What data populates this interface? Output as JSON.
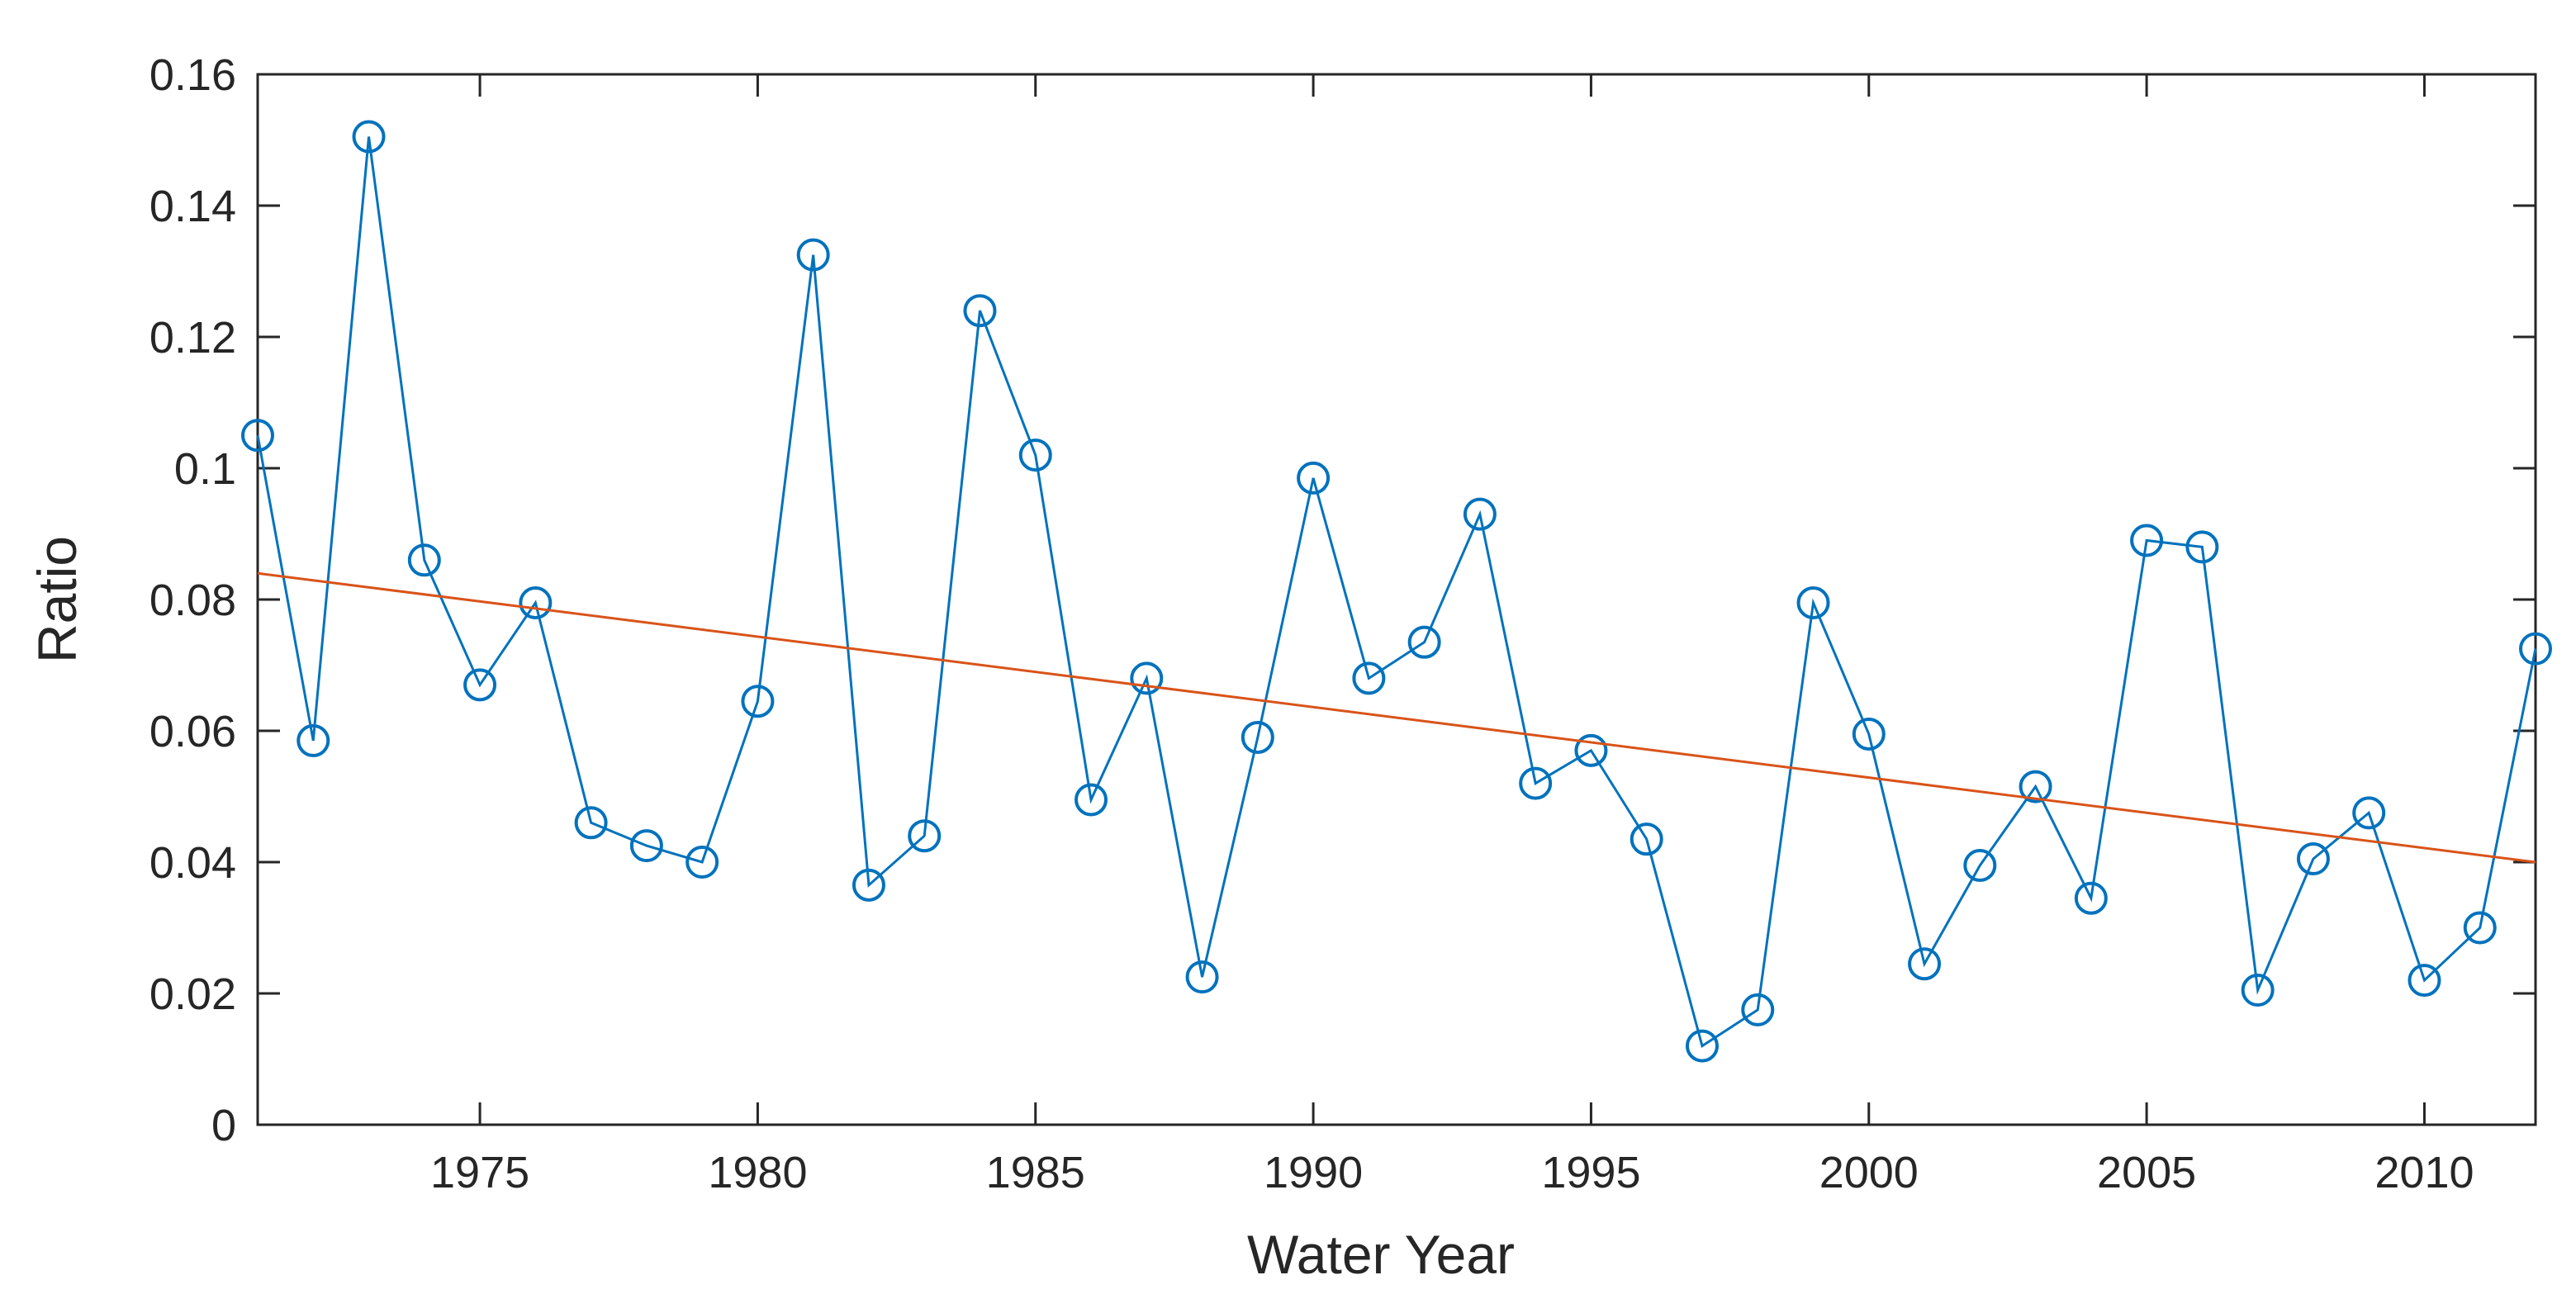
{
  "chart_data": {
    "type": "line",
    "title": "",
    "xlabel": "Water Year",
    "ylabel": "Ratio",
    "xlim": [
      1971,
      2012
    ],
    "ylim": [
      0,
      0.16
    ],
    "x_ticks": [
      1975,
      1980,
      1985,
      1990,
      1995,
      2000,
      2005,
      2010
    ],
    "x_tick_labels": [
      "1975",
      "1980",
      "1985",
      "1990",
      "1995",
      "2000",
      "2005",
      "2010"
    ],
    "y_ticks": [
      0,
      0.02,
      0.04,
      0.06,
      0.08,
      0.1,
      0.12,
      0.14,
      0.16
    ],
    "y_tick_labels": [
      "0",
      "0.02",
      "0.04",
      "0.06",
      "0.08",
      "0.1",
      "0.12",
      "0.14",
      "0.16"
    ],
    "grid": false,
    "series": [
      {
        "name": "Ratio",
        "color": "#0072BD",
        "marker": "circle",
        "x": [
          1971,
          1972,
          1973,
          1974,
          1975,
          1976,
          1977,
          1978,
          1979,
          1980,
          1981,
          1982,
          1983,
          1984,
          1985,
          1986,
          1987,
          1988,
          1989,
          1990,
          1991,
          1992,
          1993,
          1994,
          1995,
          1996,
          1997,
          1998,
          1999,
          2000,
          2001,
          2002,
          2003,
          2004,
          2005,
          2006,
          2007,
          2008,
          2009,
          2010,
          2011,
          2012
        ],
        "y": [
          0.105,
          0.0585,
          0.1505,
          0.086,
          0.067,
          0.0795,
          0.046,
          0.0425,
          0.04,
          0.0645,
          0.1325,
          0.0365,
          0.044,
          0.124,
          0.102,
          0.0495,
          0.068,
          0.0225,
          0.059,
          0.0985,
          0.068,
          0.0735,
          0.093,
          0.052,
          0.057,
          0.0435,
          0.012,
          0.0175,
          0.0795,
          0.0595,
          0.0245,
          0.0395,
          0.0515,
          0.0345,
          0.089,
          0.088,
          0.0205,
          0.0405,
          0.0475,
          0.022,
          0.03,
          0.0725
        ]
      },
      {
        "name": "Trend",
        "color": "#D95319",
        "marker": "none",
        "x": [
          1971,
          2012
        ],
        "y": [
          0.084,
          0.04
        ]
      }
    ]
  }
}
